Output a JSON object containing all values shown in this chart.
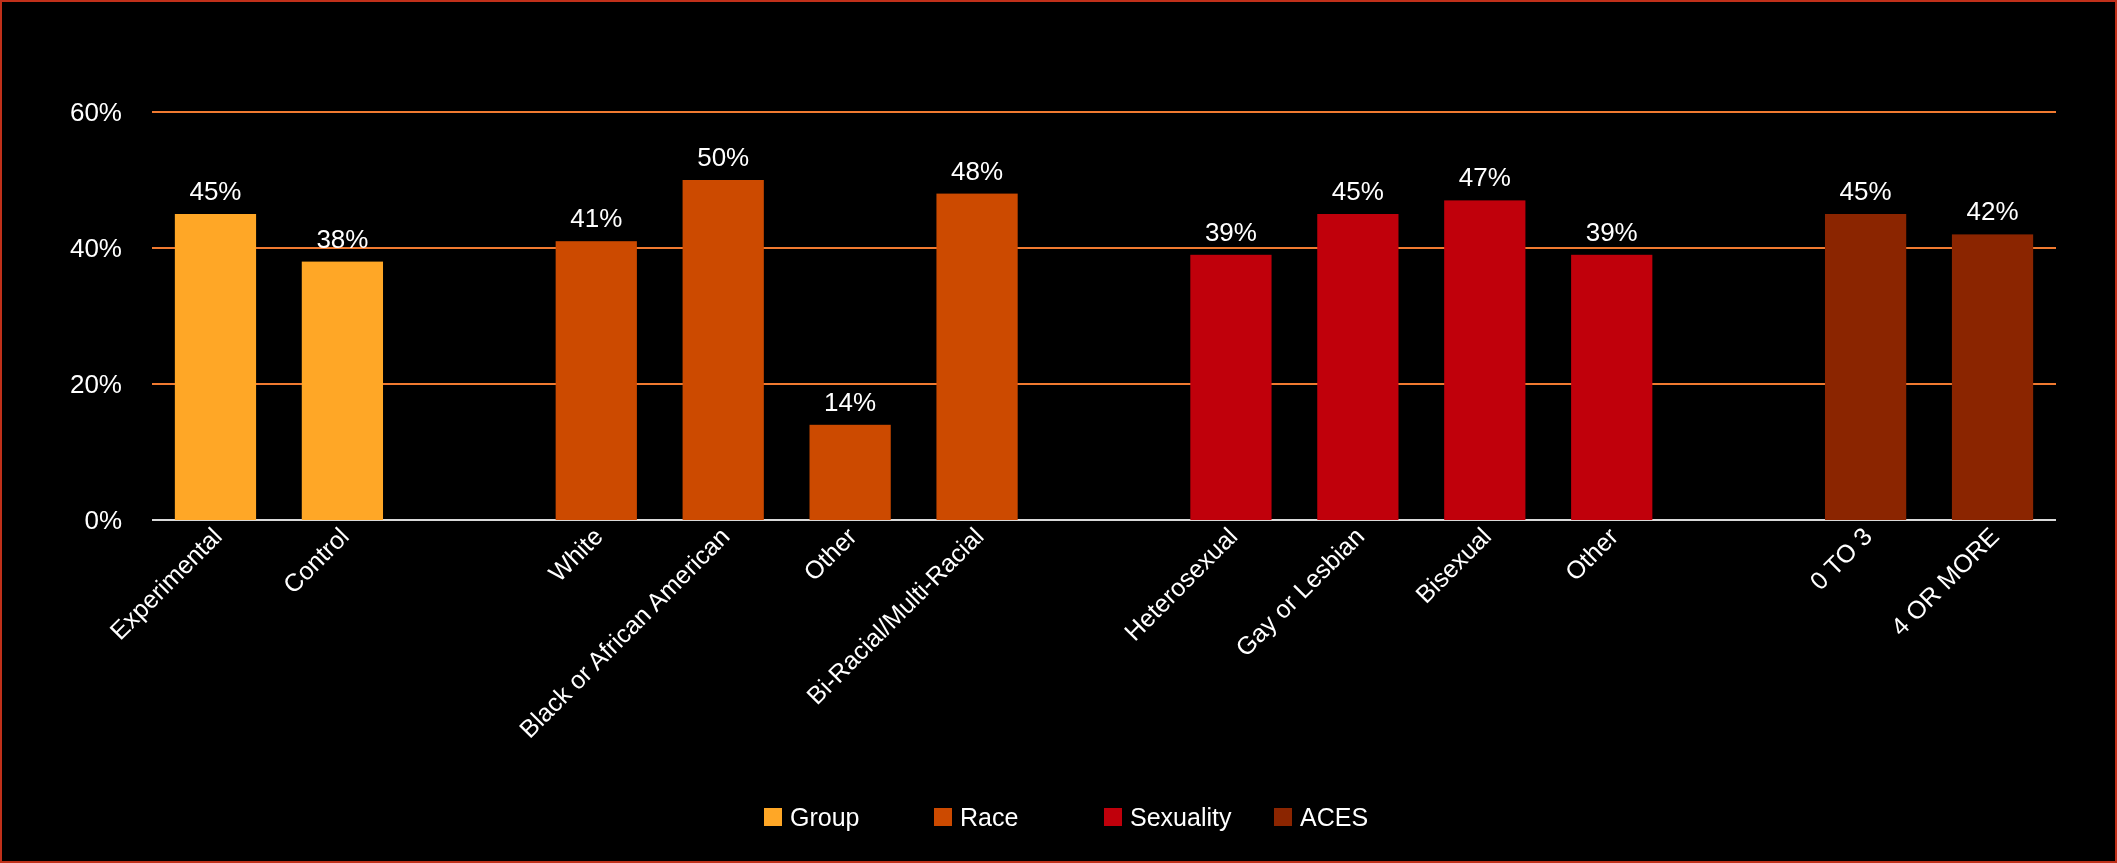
{
  "chart_data": {
    "type": "bar",
    "categories": [
      "Experimental",
      "Control",
      null,
      "White",
      "Black or African American",
      "Other",
      "Bi-Racial/Multi-Racial",
      null,
      "Heterosexual",
      "Gay or Lesbian",
      "Bisexual",
      "Other",
      null,
      "0 TO 3",
      "4 OR MORE"
    ],
    "series": [
      {
        "name": "Group",
        "color": "#ffa726",
        "values": [
          45,
          38,
          null,
          null,
          null,
          null,
          null,
          null,
          null,
          null,
          null,
          null,
          null,
          null,
          null
        ],
        "value_labels": [
          "45%",
          "38%",
          null,
          null,
          null,
          null,
          null,
          null,
          null,
          null,
          null,
          null,
          null,
          null,
          null
        ]
      },
      {
        "name": "Race",
        "color": "#cc4a00",
        "values": [
          null,
          null,
          null,
          41,
          50,
          14,
          48,
          null,
          null,
          null,
          null,
          null,
          null,
          null,
          null
        ],
        "value_labels": [
          null,
          null,
          null,
          "41%",
          "50%",
          "14%",
          "48%",
          null,
          null,
          null,
          null,
          null,
          null,
          null,
          null
        ]
      },
      {
        "name": "Sexuality",
        "color": "#c0000b",
        "values": [
          null,
          null,
          null,
          null,
          null,
          null,
          null,
          null,
          39,
          45,
          47,
          39,
          null,
          null,
          null
        ],
        "value_labels": [
          null,
          null,
          null,
          null,
          null,
          null,
          null,
          null,
          "39%",
          "45%",
          "47%",
          "39%",
          null,
          null,
          null
        ]
      },
      {
        "name": "ACES",
        "color": "#8b2500",
        "values": [
          null,
          null,
          null,
          null,
          null,
          null,
          null,
          null,
          null,
          null,
          null,
          null,
          null,
          45,
          42
        ],
        "value_labels": [
          null,
          null,
          null,
          null,
          null,
          null,
          null,
          null,
          null,
          null,
          null,
          null,
          null,
          "45%",
          "42%"
        ]
      }
    ],
    "ylim": [
      0,
      60
    ],
    "yticks": [
      {
        "value": 0,
        "label": "0%"
      },
      {
        "value": 20,
        "label": "20%"
      },
      {
        "value": 40,
        "label": "40%"
      },
      {
        "value": 60,
        "label": "60%"
      }
    ],
    "grid": "y",
    "legend": "bottom"
  }
}
